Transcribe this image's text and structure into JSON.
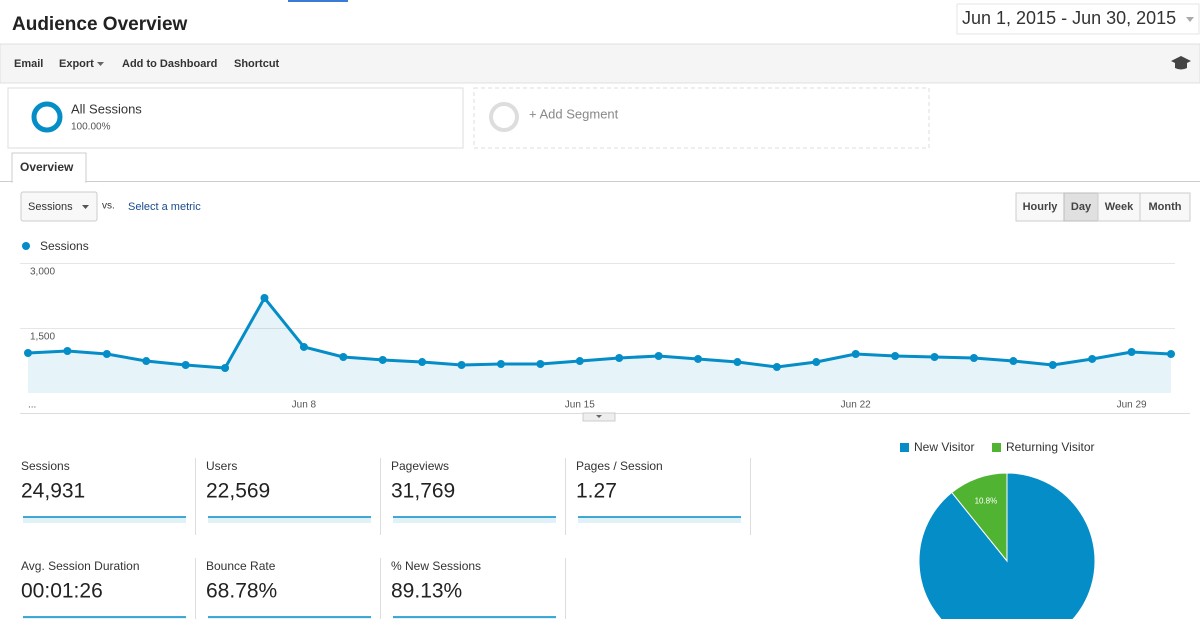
{
  "header": {
    "title": "Audience Overview",
    "date_range": "Jun 1, 2015 - Jun 30, 2015"
  },
  "toolbar": [
    "Email",
    "Export",
    "Add to Dashboard",
    "Shortcut"
  ],
  "segments": [
    {
      "name": "All Sessions",
      "share": "100.00%"
    },
    {
      "name": "+ Add Segment"
    }
  ],
  "tabs": [
    "Overview"
  ],
  "metric_picker": {
    "metric": "Sessions",
    "vs": "vs.",
    "link": "Select a metric"
  },
  "granularity": [
    "Hourly",
    "Day",
    "Week",
    "Month"
  ],
  "chart_data": [
    {
      "type": "line",
      "categories": [
        "...",
        null,
        null,
        null,
        null,
        null,
        null,
        "Jun 8",
        null,
        null,
        null,
        null,
        null,
        null,
        "Jun 15",
        null,
        null,
        null,
        null,
        null,
        null,
        "Jun 22",
        null,
        null,
        null,
        null,
        null,
        null,
        "Jun 29",
        null
      ],
      "series": [
        {
          "name": "Sessions",
          "color": "#058dc7",
          "values": [
            923,
            969,
            900,
            738,
            646,
            577,
            2192,
            1062,
            831,
            762,
            715,
            646,
            669,
            669,
            738,
            808,
            854,
            785,
            715,
            600,
            715,
            900,
            854,
            831,
            808,
            738,
            646,
            785,
            946,
            900
          ]
        }
      ],
      "ylim": [
        0,
        3000
      ],
      "yticks": [
        {
          "value": 1500,
          "label": "1,500"
        },
        {
          "value": 3000,
          "label": "3,000"
        }
      ],
      "grid": true
    },
    {
      "type": "pie",
      "categories": [
        "New Visitor",
        "Returning Visitor"
      ],
      "values": [
        89.2,
        10.8
      ],
      "value_labels": [
        null,
        "10.8%"
      ],
      "colors": [
        "#058dc7",
        "#50b432"
      ]
    }
  ],
  "scorecards": [
    {
      "label": "Sessions",
      "value": "24,931"
    },
    {
      "label": "Users",
      "value": "22,569"
    },
    {
      "label": "Pageviews",
      "value": "31,769"
    },
    {
      "label": "Pages / Session",
      "value": "1.27"
    },
    {
      "label": "Avg. Session Duration",
      "value": "00:01:26"
    },
    {
      "label": "Bounce Rate",
      "value": "68.78%"
    },
    {
      "label": "% New Sessions",
      "value": "89.13%"
    }
  ]
}
